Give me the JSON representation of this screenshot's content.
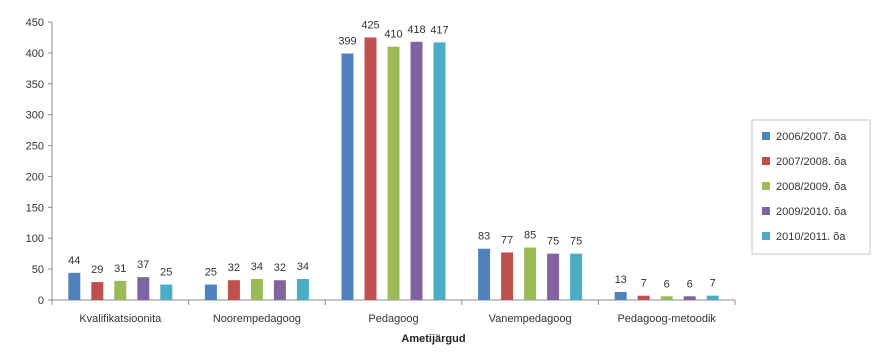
{
  "chart_data": {
    "type": "bar",
    "title": "",
    "xlabel": "Ametijärgud",
    "ylabel": "",
    "ylim": [
      0,
      450
    ],
    "yticks": [
      0,
      50,
      100,
      150,
      200,
      250,
      300,
      350,
      400,
      450
    ],
    "grid": false,
    "legend_position": "right",
    "categories": [
      "Kvalifikatsioonita",
      "Noorempedagoog",
      "Pedagoog",
      "Vanempedagoog",
      "Pedagoog-metoodik"
    ],
    "series": [
      {
        "name": "2006/2007. õa",
        "color": "#4f81bd",
        "values": [
          44,
          25,
          399,
          83,
          13
        ]
      },
      {
        "name": "2007/2008. õa",
        "color": "#c0504d",
        "values": [
          29,
          32,
          425,
          77,
          7
        ]
      },
      {
        "name": "2008/2009. õa",
        "color": "#9bbb59",
        "values": [
          31,
          34,
          410,
          85,
          6
        ]
      },
      {
        "name": "2009/2010. õa",
        "color": "#8064a2",
        "values": [
          37,
          32,
          418,
          75,
          6
        ]
      },
      {
        "name": "2010/2011. õa",
        "color": "#4bacc6",
        "values": [
          25,
          34,
          417,
          75,
          7
        ]
      }
    ]
  }
}
